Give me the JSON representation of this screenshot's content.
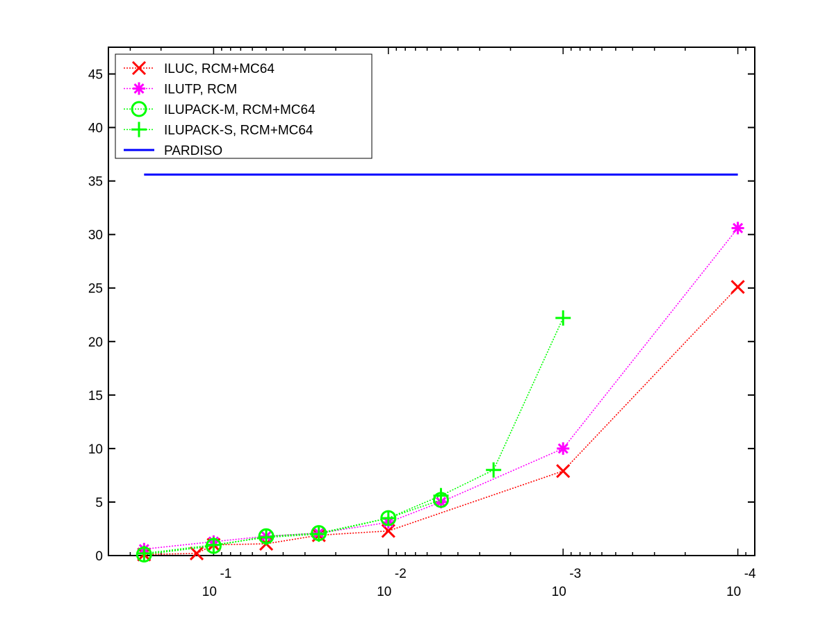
{
  "chart_data": {
    "type": "line",
    "title": "",
    "xlabel": "",
    "ylabel": "",
    "x_scale": "log-reversed",
    "xlim": [
      0.4,
      8e-05
    ],
    "ylim": [
      0,
      47.5
    ],
    "x_ticks": [
      {
        "value": 0.1,
        "base": "10",
        "exp": "-1"
      },
      {
        "value": 0.01,
        "base": "10",
        "exp": "-2"
      },
      {
        "value": 0.001,
        "base": "10",
        "exp": "-3"
      },
      {
        "value": 0.0001,
        "base": "10",
        "exp": "-4"
      }
    ],
    "y_ticks": [
      0,
      5,
      10,
      15,
      20,
      25,
      30,
      35,
      40,
      45
    ],
    "grid": false,
    "legend_position": "top-left",
    "series": [
      {
        "name": "ILUC, RCM+MC64",
        "color": "#ff0000",
        "marker": "x",
        "linestyle": "dotted",
        "x": [
          0.25,
          0.125,
          0.1,
          0.05,
          0.025,
          0.01,
          0.001,
          0.0001
        ],
        "y": [
          0.1,
          0.2,
          1.0,
          1.1,
          1.9,
          2.3,
          7.9,
          25.1
        ]
      },
      {
        "name": "ILUTP, RCM",
        "color": "#ff00ff",
        "marker": "star",
        "linestyle": "dotted",
        "x": [
          0.25,
          0.1,
          0.05,
          0.025,
          0.01,
          0.005,
          0.001,
          0.0001
        ],
        "y": [
          0.6,
          1.3,
          1.8,
          2.1,
          3.1,
          5.0,
          10.0,
          30.6
        ]
      },
      {
        "name": "ILUPACK-M, RCM+MC64",
        "color": "#00ff00",
        "marker": "circle",
        "linestyle": "dotted",
        "x": [
          0.25,
          0.1,
          0.05,
          0.025,
          0.01,
          0.005
        ],
        "y": [
          0.1,
          0.9,
          1.8,
          2.1,
          3.5,
          5.2
        ]
      },
      {
        "name": "ILUPACK-S, RCM+MC64",
        "color": "#00ff00",
        "marker": "plus",
        "linestyle": "dotted",
        "x": [
          0.25,
          0.1,
          0.05,
          0.025,
          0.01,
          0.005,
          0.0025,
          0.001
        ],
        "y": [
          0.2,
          1.0,
          1.7,
          2.0,
          3.5,
          5.6,
          8.0,
          22.2
        ]
      },
      {
        "name": "PARDISO",
        "color": "#0000ff",
        "marker": "none",
        "linestyle": "solid",
        "x": [
          0.25,
          0.0001
        ],
        "y": [
          35.6,
          35.6
        ]
      }
    ]
  }
}
